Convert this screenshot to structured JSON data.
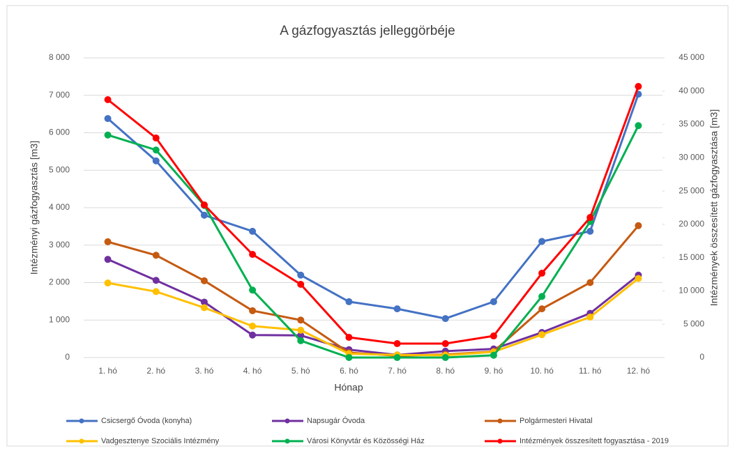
{
  "chart_data": {
    "type": "line",
    "title": "A gázfogyasztás jelleggörbéje",
    "x_label": "Hónap",
    "y_label": "Intézményi gázfogyasztás [m3]",
    "y2_label": "Intézmények összesített gázfogyasztása [m3]",
    "categories": [
      "1. hó",
      "2. hó",
      "3. hó",
      "4. hó",
      "5. hó",
      "6. hó",
      "7. hó",
      "8. hó",
      "9. hó",
      "10. hó",
      "11. hó",
      "12. hó"
    ],
    "ylim": [
      0,
      8000
    ],
    "yticks": [
      0,
      {
        "value": 1000,
        "label": "1 000"
      },
      {
        "value": 2000,
        "label": "2 000"
      },
      {
        "value": 3000,
        "label": "3 000"
      },
      {
        "value": 4000,
        "label": "4 000"
      },
      {
        "value": 5000,
        "label": "5 000"
      },
      {
        "value": 6000,
        "label": "6 000"
      },
      {
        "value": 7000,
        "label": "7 000"
      },
      {
        "value": 8000,
        "label": "8 000"
      }
    ],
    "y2lim": [
      0,
      45000
    ],
    "y2ticks": [
      0,
      {
        "value": 5000,
        "label": "5 000"
      },
      {
        "value": 10000,
        "label": "10 000"
      },
      {
        "value": 15000,
        "label": "15 000"
      },
      {
        "value": 20000,
        "label": "20 000"
      },
      {
        "value": 25000,
        "label": "25 000"
      },
      {
        "value": 30000,
        "label": "30 000"
      },
      {
        "value": 35000,
        "label": "35 000"
      },
      {
        "value": 40000,
        "label": "40 000"
      },
      {
        "value": 45000,
        "label": "45 000"
      }
    ],
    "grid": true,
    "legend": "bottom",
    "series": [
      {
        "name": "Csicsergő Óvoda (konyha)",
        "color": "#4472c4",
        "values": [
          6380,
          5250,
          3800,
          3370,
          2200,
          1490,
          1300,
          1040,
          1490,
          3100,
          3370,
          7030
        ]
      },
      {
        "name": "Napsugár Óvoda",
        "color": "#7030a0",
        "values": [
          2620,
          2060,
          1480,
          600,
          590,
          210,
          70,
          170,
          230,
          670,
          1180,
          2200
        ]
      },
      {
        "name": "Polgármesteri Hivatal",
        "color": "#c55a11",
        "values": [
          3090,
          2730,
          2050,
          1250,
          1000,
          130,
          50,
          80,
          160,
          1300,
          2000,
          3520
        ]
      },
      {
        "name": "Vadgesztenye Szociális Intézmény",
        "color": "#ffc000",
        "values": [
          1990,
          1760,
          1330,
          840,
          730,
          100,
          70,
          60,
          150,
          610,
          1080,
          2110
        ]
      },
      {
        "name": "Városi Könyvtár és Közösségi Ház",
        "color": "#00b050",
        "values": [
          5940,
          5540,
          4060,
          1800,
          450,
          0,
          0,
          0,
          60,
          1630,
          3630,
          6190
        ]
      },
      {
        "name": "Intézmények összesített fogyasztása - 2019",
        "color": "#ff0000",
        "axis": "y2",
        "values": [
          38720,
          32960,
          22920,
          15490,
          10990,
          3030,
          2090,
          2090,
          3240,
          12660,
          21030,
          40710
        ]
      }
    ]
  }
}
